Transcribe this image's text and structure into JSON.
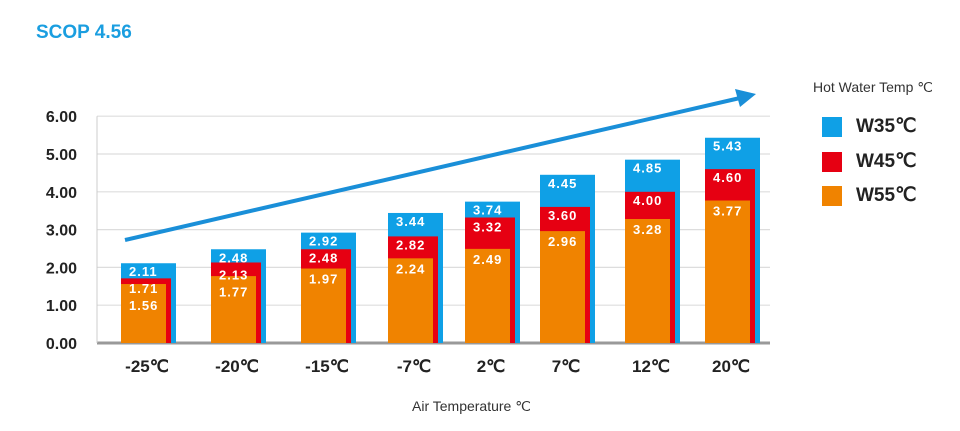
{
  "chart_data": {
    "type": "bar",
    "title": "SCOP 4.56",
    "xlabel": "Air Temperature ℃",
    "ylabel": "",
    "ylim": [
      0,
      6
    ],
    "yticks": [
      "0.00",
      "1.00",
      "2.00",
      "3.00",
      "4.00",
      "5.00",
      "6.00"
    ],
    "grid": true,
    "categories": [
      "-25℃",
      "-20℃",
      "-15℃",
      "-7℃",
      "2℃",
      "7℃",
      "12℃",
      "20℃"
    ],
    "legend_title": "Hot Water Temp ℃",
    "legend_position": "right",
    "series": [
      {
        "name": "W35℃",
        "color": "#0fa0e6",
        "values": [
          2.11,
          2.48,
          2.92,
          3.44,
          3.74,
          4.45,
          4.85,
          5.43
        ],
        "labels": [
          "2.11",
          "2.48",
          "2.92",
          "3.44",
          "3.74",
          "4.45",
          "4.85",
          "5.43"
        ]
      },
      {
        "name": "W45℃",
        "color": "#e60012",
        "values": [
          1.71,
          2.13,
          2.48,
          2.82,
          3.32,
          3.6,
          4.0,
          4.6
        ],
        "labels": [
          "1.71",
          "2.13",
          "2.48",
          "2.82",
          "3.32",
          "3.60",
          "4.00",
          "4.60"
        ]
      },
      {
        "name": "W55℃",
        "color": "#f08300",
        "values": [
          1.56,
          1.77,
          1.97,
          2.24,
          2.49,
          2.96,
          3.28,
          3.77
        ],
        "labels": [
          "1.56",
          "1.77",
          "1.97",
          "2.24",
          "2.49",
          "2.96",
          "3.28",
          "3.77"
        ]
      }
    ],
    "annotations": [
      {
        "type": "trend-arrow",
        "color": "#1a8fd8"
      }
    ]
  }
}
